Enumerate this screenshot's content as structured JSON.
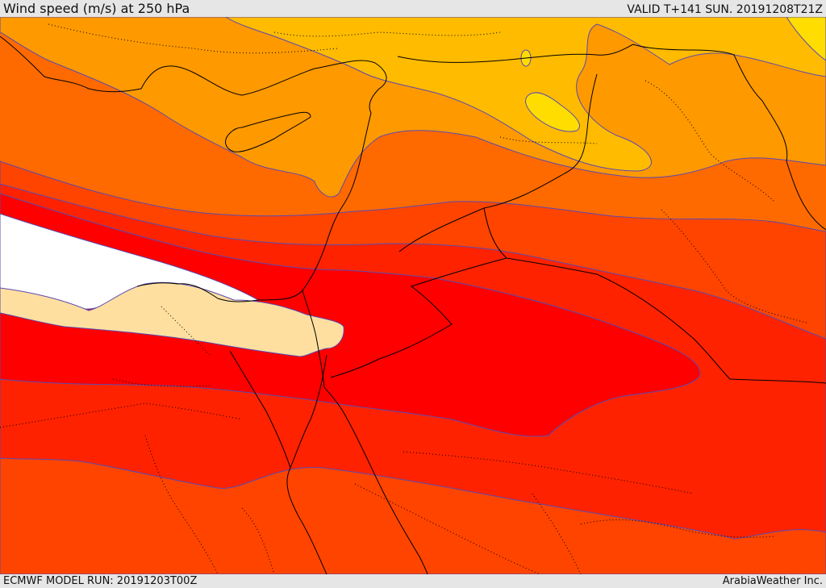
{
  "header": {
    "title": "Wind speed (m/s) at 250 hPa",
    "valid_time": "VALID T+141 SUN. 20191208T21Z"
  },
  "footer": {
    "model_run": "ECMWF MODEL RUN: 20191203T00Z",
    "credit": "ArabiaWeather Inc."
  },
  "colors": {
    "band_lowest": "#ffdfa0",
    "band_mid_red": "#ff0000",
    "band_red_orange": "#ff2200",
    "band_orange_red": "#ff4400",
    "band_dark_orange": "#ff6a00",
    "band_orange": "#ff9900",
    "band_amber": "#ffbb00",
    "band_yellow": "#ffdd00",
    "contour": "#5a4ab0",
    "coastline": "#000000",
    "no_data": "#ffffff"
  }
}
